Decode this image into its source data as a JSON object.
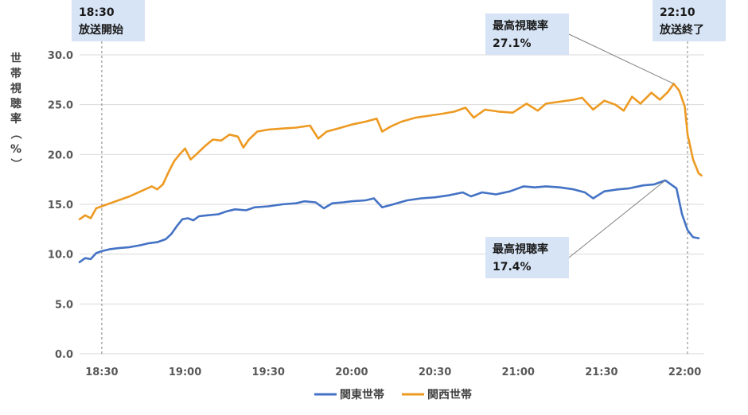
{
  "chart_data": {
    "type": "line",
    "title": "",
    "xlabel": "",
    "ylabel": "世帯視聴率（%）",
    "ylim": [
      0,
      30
    ],
    "y_ticks": [
      "0.0",
      "5.0",
      "10.0",
      "15.0",
      "20.0",
      "25.0",
      "30.0"
    ],
    "x_ticks": [
      "18:30",
      "19:00",
      "19:30",
      "20:00",
      "20:30",
      "21:00",
      "21:30",
      "22:00"
    ],
    "x_start": "18:22",
    "x_end": "22:07",
    "grid": true,
    "legend": "bottom",
    "colors": {
      "kanto": "#4472C4",
      "kansai": "#ED9A22",
      "callout_bg": "#D6E4F5",
      "guide": "#808080"
    },
    "series": [
      {
        "name": "関東世帯",
        "color": "#4472C4",
        "points": [
          [
            "18:22",
            9.2
          ],
          [
            "18:24",
            9.6
          ],
          [
            "18:26",
            9.5
          ],
          [
            "18:28",
            10.1
          ],
          [
            "18:30",
            10.3
          ],
          [
            "18:33",
            10.5
          ],
          [
            "18:36",
            10.6
          ],
          [
            "18:40",
            10.7
          ],
          [
            "18:44",
            10.9
          ],
          [
            "18:47",
            11.1
          ],
          [
            "18:50",
            11.2
          ],
          [
            "18:53",
            11.5
          ],
          [
            "18:55",
            12.0
          ],
          [
            "18:57",
            12.8
          ],
          [
            "18:59",
            13.5
          ],
          [
            "19:01",
            13.6
          ],
          [
            "19:03",
            13.4
          ],
          [
            "19:05",
            13.8
          ],
          [
            "19:08",
            13.9
          ],
          [
            "19:12",
            14.0
          ],
          [
            "19:15",
            14.3
          ],
          [
            "19:18",
            14.5
          ],
          [
            "19:22",
            14.4
          ],
          [
            "19:25",
            14.7
          ],
          [
            "19:30",
            14.8
          ],
          [
            "19:35",
            15.0
          ],
          [
            "19:40",
            15.1
          ],
          [
            "19:43",
            15.3
          ],
          [
            "19:47",
            15.2
          ],
          [
            "19:50",
            14.6
          ],
          [
            "19:53",
            15.1
          ],
          [
            "19:57",
            15.2
          ],
          [
            "20:00",
            15.3
          ],
          [
            "20:05",
            15.4
          ],
          [
            "20:08",
            15.6
          ],
          [
            "20:11",
            14.7
          ],
          [
            "20:15",
            15.0
          ],
          [
            "20:20",
            15.4
          ],
          [
            "20:25",
            15.6
          ],
          [
            "20:30",
            15.7
          ],
          [
            "20:35",
            15.9
          ],
          [
            "20:40",
            16.2
          ],
          [
            "20:43",
            15.8
          ],
          [
            "20:47",
            16.2
          ],
          [
            "20:52",
            16.0
          ],
          [
            "20:57",
            16.3
          ],
          [
            "21:02",
            16.8
          ],
          [
            "21:06",
            16.7
          ],
          [
            "21:10",
            16.8
          ],
          [
            "21:15",
            16.7
          ],
          [
            "21:20",
            16.5
          ],
          [
            "21:24",
            16.2
          ],
          [
            "21:27",
            15.6
          ],
          [
            "21:31",
            16.3
          ],
          [
            "21:36",
            16.5
          ],
          [
            "21:40",
            16.6
          ],
          [
            "21:45",
            16.9
          ],
          [
            "21:49",
            17.0
          ],
          [
            "21:53",
            17.4
          ],
          [
            "21:57",
            16.6
          ],
          [
            "21:59",
            14.0
          ],
          [
            "22:01",
            12.4
          ],
          [
            "22:03",
            11.7
          ],
          [
            "22:05",
            11.6
          ]
        ]
      },
      {
        "name": "関西世帯",
        "color": "#ED9A22",
        "points": [
          [
            "18:22",
            13.5
          ],
          [
            "18:24",
            13.9
          ],
          [
            "18:26",
            13.6
          ],
          [
            "18:28",
            14.6
          ],
          [
            "18:30",
            14.8
          ],
          [
            "18:33",
            15.1
          ],
          [
            "18:36",
            15.4
          ],
          [
            "18:40",
            15.8
          ],
          [
            "18:44",
            16.3
          ],
          [
            "18:48",
            16.8
          ],
          [
            "18:50",
            16.5
          ],
          [
            "18:52",
            17.0
          ],
          [
            "18:54",
            18.2
          ],
          [
            "18:56",
            19.3
          ],
          [
            "18:58",
            20.0
          ],
          [
            "19:00",
            20.6
          ],
          [
            "19:02",
            19.5
          ],
          [
            "19:04",
            20.0
          ],
          [
            "19:07",
            20.8
          ],
          [
            "19:10",
            21.5
          ],
          [
            "19:13",
            21.4
          ],
          [
            "19:16",
            22.0
          ],
          [
            "19:19",
            21.8
          ],
          [
            "19:21",
            20.7
          ],
          [
            "19:23",
            21.5
          ],
          [
            "19:26",
            22.3
          ],
          [
            "19:30",
            22.5
          ],
          [
            "19:35",
            22.6
          ],
          [
            "19:40",
            22.7
          ],
          [
            "19:45",
            22.9
          ],
          [
            "19:48",
            21.6
          ],
          [
            "19:51",
            22.3
          ],
          [
            "19:55",
            22.6
          ],
          [
            "20:00",
            23.0
          ],
          [
            "20:05",
            23.3
          ],
          [
            "20:09",
            23.6
          ],
          [
            "20:11",
            22.3
          ],
          [
            "20:14",
            22.8
          ],
          [
            "20:18",
            23.3
          ],
          [
            "20:23",
            23.7
          ],
          [
            "20:28",
            23.9
          ],
          [
            "20:33",
            24.1
          ],
          [
            "20:37",
            24.3
          ],
          [
            "20:41",
            24.7
          ],
          [
            "20:44",
            23.7
          ],
          [
            "20:48",
            24.5
          ],
          [
            "20:53",
            24.3
          ],
          [
            "20:58",
            24.2
          ],
          [
            "21:03",
            25.1
          ],
          [
            "21:07",
            24.4
          ],
          [
            "21:10",
            25.1
          ],
          [
            "21:15",
            25.3
          ],
          [
            "21:20",
            25.5
          ],
          [
            "21:23",
            25.7
          ],
          [
            "21:27",
            24.5
          ],
          [
            "21:31",
            25.4
          ],
          [
            "21:35",
            25.0
          ],
          [
            "21:38",
            24.4
          ],
          [
            "21:41",
            25.8
          ],
          [
            "21:44",
            25.1
          ],
          [
            "21:48",
            26.2
          ],
          [
            "21:51",
            25.5
          ],
          [
            "21:54",
            26.3
          ],
          [
            "21:56",
            27.1
          ],
          [
            "21:58",
            26.4
          ],
          [
            "22:00",
            24.8
          ],
          [
            "22:01",
            22.0
          ],
          [
            "22:03",
            19.5
          ],
          [
            "22:05",
            18.1
          ],
          [
            "22:06",
            17.9
          ]
        ]
      }
    ],
    "annotations": {
      "start": {
        "time": "18:30",
        "line1": "18:30",
        "line2": "放送開始"
      },
      "end": {
        "time": "22:10",
        "line1": "22:10",
        "line2": "放送終了"
      },
      "kansai_peak": {
        "line1": "最高視聴率",
        "line2": "27.1%",
        "time": "21:56",
        "value": 27.1
      },
      "kanto_peak": {
        "line1": "最高視聴率",
        "line2": "17.4%",
        "time": "21:53",
        "value": 17.4
      }
    }
  }
}
